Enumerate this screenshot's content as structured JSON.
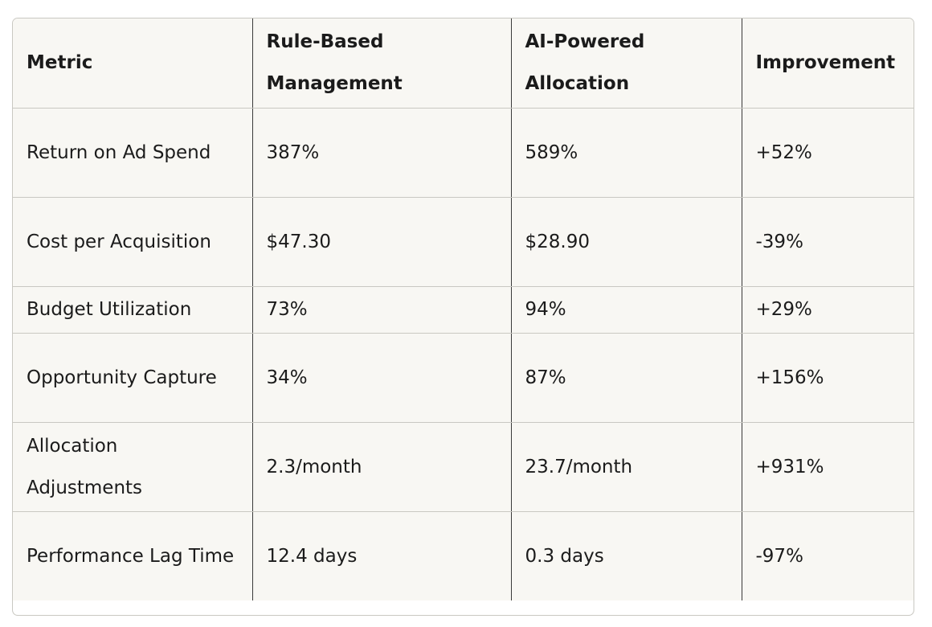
{
  "table": {
    "headers": [
      "Metric",
      "Rule-Based Management",
      "AI-Powered Allocation",
      "Improvement"
    ],
    "rows": [
      [
        "Return on Ad Spend",
        "387%",
        "589%",
        "+52%"
      ],
      [
        "Cost per Acquisition",
        "$47.30",
        "$28.90",
        "-39%"
      ],
      [
        "Budget Utilization",
        "73%",
        "94%",
        "+29%"
      ],
      [
        "Opportunity Capture",
        "34%",
        "87%",
        "+156%"
      ],
      [
        "Allocation Adjustments",
        "2.3/month",
        "23.7/month",
        "+931%"
      ],
      [
        "Performance Lag Time",
        "12.4 days",
        "0.3 days",
        "-97%"
      ]
    ]
  }
}
